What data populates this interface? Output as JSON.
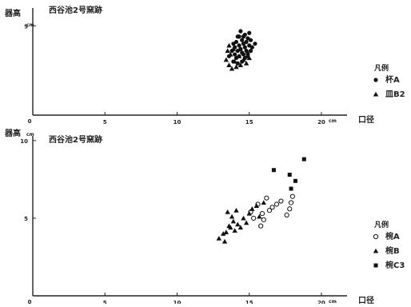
{
  "chart_data": [
    {
      "type": "scatter",
      "title": "西谷池2号窯跡",
      "ylabel": "器高",
      "yunit": "cm",
      "xlabel": "口径",
      "xunit": "cm",
      "xlim": [
        0,
        21
      ],
      "ylim": [
        0,
        6
      ],
      "xticks": [
        "5",
        "10",
        "15",
        "20"
      ],
      "yticks": [
        "5"
      ],
      "legend_title": "凡例",
      "legend_position": "right",
      "series": [
        {
          "name": "杯A",
          "marker": "circle-filled",
          "points": [
            [
              13.6,
              3.3
            ],
            [
              13.8,
              3.6
            ],
            [
              13.9,
              3.0
            ],
            [
              14.0,
              3.8
            ],
            [
              14.0,
              3.4
            ],
            [
              14.1,
              4.1
            ],
            [
              14.1,
              3.2
            ],
            [
              14.2,
              3.6
            ],
            [
              14.2,
              2.9
            ],
            [
              14.3,
              4.4
            ],
            [
              14.3,
              3.9
            ],
            [
              14.3,
              3.3
            ],
            [
              14.4,
              4.7
            ],
            [
              14.4,
              3.7
            ],
            [
              14.5,
              4.2
            ],
            [
              14.5,
              3.5
            ],
            [
              14.5,
              3.0
            ],
            [
              14.6,
              4.0
            ],
            [
              14.6,
              3.4
            ],
            [
              14.7,
              4.5
            ],
            [
              14.7,
              3.8
            ],
            [
              14.7,
              3.2
            ],
            [
              14.8,
              4.1
            ],
            [
              14.8,
              3.6
            ],
            [
              14.9,
              4.3
            ],
            [
              14.9,
              3.3
            ],
            [
              15.0,
              3.9
            ],
            [
              15.0,
              4.6
            ],
            [
              15.1,
              3.6
            ],
            [
              15.1,
              4.2
            ],
            [
              15.2,
              3.8
            ],
            [
              15.4,
              4.0
            ],
            [
              14.2,
              4.4
            ],
            [
              13.9,
              4.0
            ],
            [
              14.6,
              4.4
            ]
          ]
        },
        {
          "name": "皿B2",
          "marker": "triangle-filled",
          "points": [
            [
              13.4,
              3.1
            ],
            [
              13.5,
              3.6
            ],
            [
              13.6,
              2.8
            ],
            [
              13.7,
              3.4
            ],
            [
              13.8,
              2.6
            ],
            [
              13.9,
              3.7
            ],
            [
              14.0,
              3.0
            ],
            [
              14.1,
              2.7
            ],
            [
              14.3,
              3.3
            ],
            [
              14.4,
              2.8
            ],
            [
              14.6,
              3.1
            ],
            [
              14.8,
              2.9
            ],
            [
              15.0,
              3.2
            ],
            [
              13.6,
              3.9
            ],
            [
              14.9,
              3.5
            ]
          ]
        }
      ]
    },
    {
      "type": "scatter",
      "title": "西谷池2号窯跡",
      "ylabel": "器高",
      "yunit": "cm",
      "xlabel": "口径",
      "xunit": "cm",
      "xlim": [
        0,
        21
      ],
      "ylim": [
        0,
        10.3
      ],
      "xticks": [
        "5",
        "10",
        "15",
        "20"
      ],
      "yticks": [
        "5",
        "10"
      ],
      "legend_title": "凡例",
      "legend_position": "right",
      "series": [
        {
          "name": "椀A",
          "marker": "circle-open",
          "points": [
            [
              15.1,
              5.4
            ],
            [
              15.3,
              5.0
            ],
            [
              15.6,
              5.9
            ],
            [
              15.8,
              4.5
            ],
            [
              15.9,
              5.3
            ],
            [
              16.0,
              4.9
            ],
            [
              16.2,
              6.3
            ],
            [
              16.6,
              5.7
            ],
            [
              16.9,
              5.9
            ],
            [
              17.2,
              6.1
            ],
            [
              17.6,
              5.2
            ],
            [
              17.9,
              6.0
            ],
            [
              18.0,
              6.4
            ],
            [
              17.8,
              5.6
            ],
            [
              16.4,
              5.5
            ]
          ]
        },
        {
          "name": "椀B",
          "marker": "triangle-filled",
          "points": [
            [
              12.9,
              3.7
            ],
            [
              13.2,
              4.0
            ],
            [
              13.3,
              3.5
            ],
            [
              13.4,
              4.1
            ],
            [
              13.5,
              5.4
            ],
            [
              13.7,
              4.4
            ],
            [
              13.8,
              5.1
            ],
            [
              13.9,
              4.8
            ],
            [
              14.0,
              4.2
            ],
            [
              14.1,
              5.5
            ],
            [
              14.2,
              4.6
            ],
            [
              14.4,
              4.4
            ],
            [
              14.6,
              5.0
            ],
            [
              14.8,
              4.7
            ],
            [
              15.0,
              5.3
            ],
            [
              15.2,
              5.6
            ],
            [
              15.5,
              5.8
            ],
            [
              15.7,
              5.1
            ],
            [
              16.0,
              6.0
            ],
            [
              13.6,
              4.5
            ]
          ]
        },
        {
          "name": "椀C3",
          "marker": "square-filled",
          "points": [
            [
              16.7,
              8.1
            ],
            [
              17.8,
              7.8
            ],
            [
              17.9,
              6.9
            ],
            [
              18.2,
              7.4
            ],
            [
              18.8,
              8.8
            ]
          ]
        }
      ]
    }
  ]
}
